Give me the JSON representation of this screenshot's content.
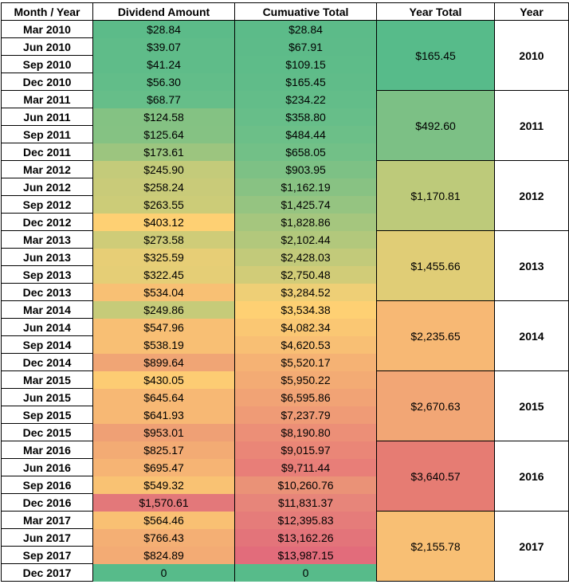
{
  "headers": {
    "month_year": "Month / Year",
    "dividend_amount": "Dividend Amount",
    "cumulative_total": "Cumuative Total",
    "year_total": "Year Total",
    "year": "Year"
  },
  "rows": [
    {
      "month": "Mar 2010",
      "dividend": "$28.84",
      "cumulative": "$28.84",
      "dividend_color": "#5cbb89",
      "cumulative_color": "#5cbb89"
    },
    {
      "month": "Jun 2010",
      "dividend": "$39.07",
      "cumulative": "$67.91",
      "dividend_color": "#5fbc89",
      "cumulative_color": "#5dbb89"
    },
    {
      "month": "Sep 2010",
      "dividend": "$41.24",
      "cumulative": "$109.15",
      "dividend_color": "#5fbc89",
      "cumulative_color": "#5ebc89"
    },
    {
      "month": "Dec 2010",
      "dividend": "$56.30",
      "cumulative": "$165.45",
      "dividend_color": "#62bd89",
      "cumulative_color": "#60bc89"
    },
    {
      "month": "Mar 2011",
      "dividend": "$68.77",
      "cumulative": "$234.22",
      "dividend_color": "#66be89",
      "cumulative_color": "#63bd89"
    },
    {
      "month": "Jun 2011",
      "dividend": "$124.58",
      "cumulative": "$358.80",
      "dividend_color": "#84c283",
      "cumulative_color": "#67be89"
    },
    {
      "month": "Sep 2011",
      "dividend": "$125.64",
      "cumulative": "$484.44",
      "dividend_color": "#85c283",
      "cumulative_color": "#6cbf88"
    },
    {
      "month": "Dec 2011",
      "dividend": "$173.61",
      "cumulative": "$658.05",
      "dividend_color": "#9cc57f",
      "cumulative_color": "#72c087"
    },
    {
      "month": "Mar 2012",
      "dividend": "$245.90",
      "cumulative": "$903.95",
      "dividend_color": "#c4cb7a",
      "cumulative_color": "#7dc185"
    },
    {
      "month": "Jun 2012",
      "dividend": "$258.24",
      "cumulative": "$1,162.19",
      "dividend_color": "#c9cb79",
      "cumulative_color": "#88c283"
    },
    {
      "month": "Sep 2012",
      "dividend": "$263.55",
      "cumulative": "$1,425.74",
      "dividend_color": "#cccc78",
      "cumulative_color": "#95c481"
    },
    {
      "month": "Dec 2012",
      "dividend": "$403.12",
      "cumulative": "$1,828.86",
      "dividend_color": "#fed073",
      "cumulative_color": "#a5c67e"
    },
    {
      "month": "Mar 2013",
      "dividend": "$273.58",
      "cumulative": "$2,102.44",
      "dividend_color": "#cfcc78",
      "cumulative_color": "#b2c87c"
    },
    {
      "month": "Jun 2013",
      "dividend": "$325.59",
      "cumulative": "$2,428.03",
      "dividend_color": "#e7ce76",
      "cumulative_color": "#c2ca7a"
    },
    {
      "month": "Sep 2013",
      "dividend": "$322.45",
      "cumulative": "$2,750.48",
      "dividend_color": "#e5ce76",
      "cumulative_color": "#d1cc78"
    },
    {
      "month": "Dec 2013",
      "dividend": "$534.04",
      "cumulative": "$3,284.52",
      "dividend_color": "#f8c074",
      "cumulative_color": "#eecf76"
    },
    {
      "month": "Mar 2014",
      "dividend": "$249.86",
      "cumulative": "$3,534.38",
      "dividend_color": "#c6cb79",
      "cumulative_color": "#fed073"
    },
    {
      "month": "Jun 2014",
      "dividend": "$547.96",
      "cumulative": "$4,082.34",
      "dividend_color": "#f8bf74",
      "cumulative_color": "#fac773"
    },
    {
      "month": "Sep 2014",
      "dividend": "$538.19",
      "cumulative": "$4,620.53",
      "dividend_color": "#f8bf74",
      "cumulative_color": "#f8bf74"
    },
    {
      "month": "Dec 2014",
      "dividend": "$899.64",
      "cumulative": "$5,520.17",
      "dividend_color": "#f0a575",
      "cumulative_color": "#f5b274"
    },
    {
      "month": "Mar 2015",
      "dividend": "$430.05",
      "cumulative": "$5,950.22",
      "dividend_color": "#fdcc73",
      "cumulative_color": "#f3ab74"
    },
    {
      "month": "Jun 2015",
      "dividend": "$645.64",
      "cumulative": "$6,595.86",
      "dividend_color": "#f7b874",
      "cumulative_color": "#f1a375"
    },
    {
      "month": "Sep 2015",
      "dividend": "$641.93",
      "cumulative": "$7,237.79",
      "dividend_color": "#f7b874",
      "cumulative_color": "#ef9b76"
    },
    {
      "month": "Dec 2015",
      "dividend": "$953.01",
      "cumulative": "$8,190.80",
      "dividend_color": "#efa075",
      "cumulative_color": "#ec8f77"
    },
    {
      "month": "Mar 2016",
      "dividend": "$825.17",
      "cumulative": "$9,015.97",
      "dividend_color": "#f3ab74",
      "cumulative_color": "#ea8677"
    },
    {
      "month": "Jun 2016",
      "dividend": "$695.47",
      "cumulative": "$9,711.44",
      "dividend_color": "#f6b474",
      "cumulative_color": "#e87e78"
    },
    {
      "month": "Sep 2016",
      "dividend": "$549.32",
      "cumulative": "$10,260.76",
      "dividend_color": "#f9c273",
      "cumulative_color": "#ea9277"
    },
    {
      "month": "Dec 2016",
      "dividend": "$1,570.61",
      "cumulative": "$11,831.37",
      "dividend_color": "#e3787a",
      "cumulative_color": "#e7857a"
    },
    {
      "month": "Mar 2017",
      "dividend": "$564.46",
      "cumulative": "$12,395.83",
      "dividend_color": "#f9c073",
      "cumulative_color": "#e57c7a"
    },
    {
      "month": "Jun 2017",
      "dividend": "$766.43",
      "cumulative": "$13,162.26",
      "dividend_color": "#f4af74",
      "cumulative_color": "#e3747a"
    },
    {
      "month": "Sep 2017",
      "dividend": "$824.89",
      "cumulative": "$13,987.15",
      "dividend_color": "#f3ab74",
      "cumulative_color": "#e26c7b"
    },
    {
      "month": "Dec 2017",
      "dividend": "0",
      "cumulative": "0",
      "dividend_color": "#57bb8a",
      "cumulative_color": "#57bb8a"
    }
  ],
  "year_groups": [
    {
      "year": "2010",
      "total": "$165.45",
      "color": "#57bb8a",
      "span": 4
    },
    {
      "year": "2011",
      "total": "$492.60",
      "color": "#7cc085",
      "span": 4
    },
    {
      "year": "2012",
      "total": "$1,170.81",
      "color": "#bdca7a",
      "span": 4
    },
    {
      "year": "2013",
      "total": "$1,455.66",
      "color": "#e0cd76",
      "span": 4
    },
    {
      "year": "2014",
      "total": "$2,235.65",
      "color": "#f7b874",
      "span": 4
    },
    {
      "year": "2015",
      "total": "$2,670.63",
      "color": "#f2a675",
      "span": 4
    },
    {
      "year": "2016",
      "total": "$3,640.57",
      "color": "#e67c73",
      "span": 4
    },
    {
      "year": "2017",
      "total": "$2,155.78",
      "color": "#f8bf74",
      "span": 4
    }
  ]
}
